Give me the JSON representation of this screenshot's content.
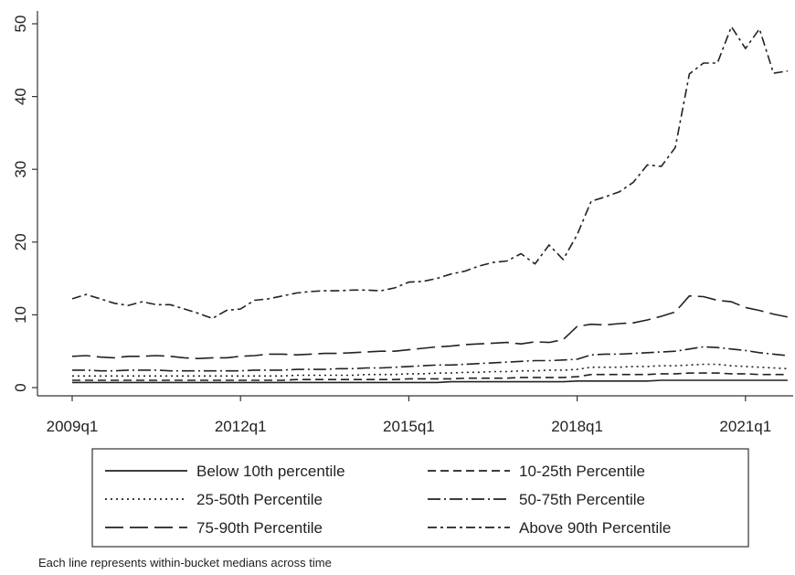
{
  "chart_data": {
    "type": "line",
    "title": "",
    "xlabel": "",
    "ylabel": "",
    "x": [
      "2009q1",
      "2009q2",
      "2009q3",
      "2009q4",
      "2010q1",
      "2010q2",
      "2010q3",
      "2010q4",
      "2011q1",
      "2011q2",
      "2011q3",
      "2011q4",
      "2012q1",
      "2012q2",
      "2012q3",
      "2012q4",
      "2013q1",
      "2013q2",
      "2013q3",
      "2013q4",
      "2014q1",
      "2014q2",
      "2014q3",
      "2014q4",
      "2015q1",
      "2015q2",
      "2015q3",
      "2015q4",
      "2016q1",
      "2016q2",
      "2016q3",
      "2016q4",
      "2017q1",
      "2017q2",
      "2017q3",
      "2017q4",
      "2018q1",
      "2018q2",
      "2018q3",
      "2018q4",
      "2019q1",
      "2019q2",
      "2019q3",
      "2019q4",
      "2020q1",
      "2020q2",
      "2020q3",
      "2020q4",
      "2021q1",
      "2021q2",
      "2021q3",
      "2021q4"
    ],
    "xticks": [
      "2009q1",
      "2012q1",
      "2015q1",
      "2018q1",
      "2021q1"
    ],
    "yticks": [
      0,
      10,
      20,
      30,
      40,
      50
    ],
    "ylim": [
      -1,
      52
    ],
    "grid": false,
    "legend_position": "bottom",
    "series": [
      {
        "name": "Below 10th percentile",
        "dash": "",
        "values": [
          0.7,
          0.7,
          0.7,
          0.7,
          0.7,
          0.7,
          0.7,
          0.7,
          0.7,
          0.7,
          0.7,
          0.7,
          0.7,
          0.7,
          0.7,
          0.7,
          0.7,
          0.7,
          0.7,
          0.7,
          0.7,
          0.7,
          0.7,
          0.7,
          0.7,
          0.7,
          0.7,
          0.8,
          0.8,
          0.8,
          0.8,
          0.8,
          0.8,
          0.8,
          0.8,
          0.8,
          0.9,
          0.9,
          0.9,
          0.9,
          0.9,
          0.9,
          1.0,
          1.0,
          1.0,
          1.0,
          1.0,
          1.0,
          1.0,
          1.0,
          1.0,
          1.0
        ]
      },
      {
        "name": "10-25th Percentile",
        "dash": "9 5",
        "values": [
          1.0,
          1.0,
          1.0,
          1.0,
          1.0,
          1.0,
          1.0,
          1.0,
          1.0,
          1.0,
          1.0,
          1.0,
          1.0,
          1.0,
          1.0,
          1.0,
          1.1,
          1.1,
          1.1,
          1.1,
          1.1,
          1.1,
          1.1,
          1.1,
          1.2,
          1.2,
          1.2,
          1.2,
          1.3,
          1.3,
          1.3,
          1.3,
          1.4,
          1.4,
          1.4,
          1.4,
          1.5,
          1.8,
          1.8,
          1.8,
          1.8,
          1.8,
          1.9,
          1.9,
          2.0,
          2.0,
          2.0,
          1.9,
          1.9,
          1.8,
          1.8,
          1.8
        ]
      },
      {
        "name": "25-50th Percentile",
        "dash": "2 4",
        "values": [
          1.6,
          1.6,
          1.6,
          1.6,
          1.6,
          1.6,
          1.6,
          1.6,
          1.6,
          1.6,
          1.6,
          1.6,
          1.6,
          1.6,
          1.6,
          1.6,
          1.7,
          1.7,
          1.7,
          1.7,
          1.7,
          1.8,
          1.8,
          1.8,
          1.9,
          1.9,
          2.0,
          2.0,
          2.1,
          2.1,
          2.2,
          2.2,
          2.3,
          2.3,
          2.4,
          2.4,
          2.5,
          2.8,
          2.8,
          2.8,
          2.9,
          2.9,
          3.0,
          3.0,
          3.1,
          3.2,
          3.2,
          3.0,
          2.9,
          2.8,
          2.7,
          2.6
        ]
      },
      {
        "name": "50-75th Percentile",
        "dash": "14 4 2 4",
        "values": [
          2.4,
          2.4,
          2.3,
          2.3,
          2.4,
          2.4,
          2.4,
          2.3,
          2.3,
          2.3,
          2.3,
          2.3,
          2.3,
          2.4,
          2.4,
          2.4,
          2.5,
          2.5,
          2.5,
          2.6,
          2.6,
          2.7,
          2.7,
          2.8,
          2.9,
          3.0,
          3.1,
          3.1,
          3.2,
          3.3,
          3.4,
          3.5,
          3.6,
          3.7,
          3.7,
          3.8,
          3.9,
          4.5,
          4.6,
          4.6,
          4.7,
          4.8,
          4.9,
          5.0,
          5.3,
          5.6,
          5.5,
          5.3,
          5.1,
          4.8,
          4.6,
          4.4
        ]
      },
      {
        "name": "75-90th Percentile",
        "dash": "20 7",
        "values": [
          4.3,
          4.4,
          4.2,
          4.1,
          4.3,
          4.3,
          4.4,
          4.3,
          4.1,
          4.0,
          4.1,
          4.1,
          4.3,
          4.4,
          4.6,
          4.6,
          4.5,
          4.6,
          4.7,
          4.7,
          4.8,
          4.9,
          5.0,
          5.0,
          5.2,
          5.4,
          5.6,
          5.7,
          5.9,
          6.0,
          6.1,
          6.2,
          6.0,
          6.3,
          6.2,
          6.6,
          8.4,
          8.7,
          8.6,
          8.8,
          8.9,
          9.3,
          9.8,
          10.4,
          12.6,
          12.5,
          12.0,
          11.8,
          11.0,
          10.6,
          10.1,
          9.7
        ]
      },
      {
        "name": "Above 90th Percentile",
        "dash": "10 4 3 4",
        "values": [
          12.2,
          12.8,
          12.2,
          11.6,
          11.3,
          11.8,
          11.4,
          11.4,
          10.8,
          10.2,
          9.5,
          10.6,
          10.8,
          12.0,
          12.2,
          12.6,
          13.0,
          13.2,
          13.3,
          13.3,
          13.4,
          13.4,
          13.3,
          13.7,
          14.5,
          14.6,
          15.0,
          15.6,
          16.0,
          16.7,
          17.2,
          17.4,
          18.4,
          17.0,
          19.6,
          17.6,
          21.0,
          25.6,
          26.2,
          26.9,
          28.2,
          30.6,
          30.4,
          33.0,
          43.1,
          44.6,
          44.6,
          49.6,
          46.6,
          49.3,
          43.2,
          43.5
        ]
      }
    ],
    "note": "Each line represents within-bucket medians across time"
  }
}
